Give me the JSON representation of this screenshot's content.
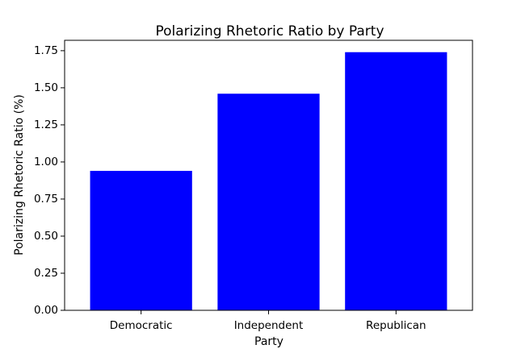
{
  "chart_data": {
    "type": "bar",
    "title": "Polarizing Rhetoric Ratio by Party",
    "xlabel": "Party",
    "ylabel": "Polarizing Rhetoric Ratio (%)",
    "categories": [
      "Democratic",
      "Independent",
      "Republican"
    ],
    "values": [
      0.94,
      1.46,
      1.74
    ],
    "ylim": [
      0,
      1.82
    ],
    "yticks": [
      0.0,
      0.25,
      0.5,
      0.75,
      1.0,
      1.25,
      1.5,
      1.75
    ],
    "ytick_labels": [
      "0.00",
      "0.25",
      "0.50",
      "0.75",
      "1.00",
      "1.25",
      "1.50",
      "1.75"
    ],
    "bar_color": "#0000ff",
    "grid": false,
    "legend": "none"
  }
}
